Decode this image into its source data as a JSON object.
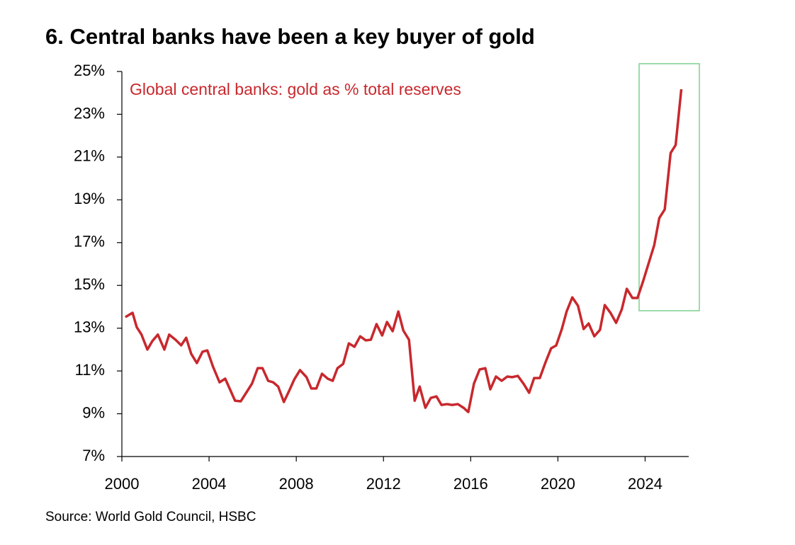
{
  "chart_data": {
    "type": "line",
    "title": "6. Central banks have been a key buyer of gold",
    "source": "Source: World Gold Council, HSBC",
    "x": [
      2000.16,
      2000.49,
      2000.68,
      2000.9,
      2001.17,
      2001.4,
      2001.65,
      2001.95,
      2002.17,
      2002.47,
      2002.72,
      2002.95,
      2003.18,
      2003.44,
      2003.7,
      2003.92,
      2004.18,
      2004.48,
      2004.74,
      2004.96,
      2005.19,
      2005.45,
      2005.74,
      2005.97,
      2006.23,
      2006.45,
      2006.71,
      2006.94,
      2007.17,
      2007.43,
      2007.69,
      2007.91,
      2008.17,
      2008.47,
      2008.69,
      2008.92,
      2009.18,
      2009.44,
      2009.67,
      2009.89,
      2010.15,
      2010.41,
      2010.67,
      2010.93,
      2011.19,
      2011.42,
      2011.68,
      2011.94,
      2012.16,
      2012.42,
      2012.68,
      2012.91,
      2013.17,
      2013.43,
      2013.66,
      2013.92,
      2014.17,
      2014.43,
      2014.66,
      2014.92,
      2015.15,
      2015.41,
      2015.67,
      2015.89,
      2016.15,
      2016.41,
      2016.67,
      2016.9,
      2017.16,
      2017.42,
      2017.68,
      2017.9,
      2018.16,
      2018.42,
      2018.68,
      2018.91,
      2019.17,
      2019.43,
      2019.69,
      2019.92,
      2020.18,
      2020.4,
      2020.66,
      2020.92,
      2021.18,
      2021.41,
      2021.67,
      2021.93,
      2022.15,
      2022.41,
      2022.67,
      2022.93,
      2023.16,
      2023.42,
      2023.65,
      2023.9,
      2024.16,
      2024.42,
      2024.65,
      2024.9,
      2025.17,
      2025.4,
      2025.66
    ],
    "series": [
      {
        "name": "Global central banks: gold as % total reserves",
        "color": "#c8282d",
        "values": [
          13.52,
          13.72,
          13.05,
          12.7,
          12.0,
          12.4,
          12.7,
          12.0,
          12.7,
          12.45,
          12.2,
          12.55,
          11.8,
          11.37,
          11.9,
          11.96,
          11.2,
          10.47,
          10.64,
          10.14,
          9.61,
          9.58,
          10.04,
          10.41,
          11.13,
          11.13,
          10.54,
          10.47,
          10.27,
          9.55,
          10.11,
          10.61,
          11.04,
          10.71,
          10.18,
          10.18,
          10.87,
          10.64,
          10.54,
          11.13,
          11.33,
          12.29,
          12.13,
          12.62,
          12.43,
          12.46,
          13.19,
          12.66,
          13.29,
          12.86,
          13.78,
          12.89,
          12.46,
          9.61,
          10.27,
          9.28,
          9.74,
          9.81,
          9.41,
          9.45,
          9.41,
          9.45,
          9.28,
          9.08,
          10.41,
          11.07,
          11.13,
          10.14,
          10.74,
          10.54,
          10.74,
          10.71,
          10.77,
          10.41,
          9.98,
          10.67,
          10.67,
          11.4,
          12.06,
          12.19,
          12.96,
          13.78,
          14.44,
          14.05,
          12.96,
          13.22,
          12.62,
          12.92,
          14.08,
          13.72,
          13.25,
          13.88,
          14.84,
          14.41,
          14.41,
          15.17,
          16.03,
          16.89,
          18.15,
          18.55,
          21.19,
          21.56,
          24.17
        ]
      }
    ],
    "xlim": [
      2000,
      2026
    ],
    "xticks": [
      2000,
      2004,
      2008,
      2012,
      2016,
      2020,
      2024
    ],
    "ylim": [
      7,
      25
    ],
    "yticks": [
      {
        "value": 7,
        "label": "7%"
      },
      {
        "value": 9,
        "label": "9%"
      },
      {
        "value": 11,
        "label": "11%"
      },
      {
        "value": 13,
        "label": "13%"
      },
      {
        "value": 15,
        "label": "15%"
      },
      {
        "value": 17,
        "label": "17%"
      },
      {
        "value": 19,
        "label": "19%"
      },
      {
        "value": 21,
        "label": "21%"
      },
      {
        "value": 23,
        "label": "23%"
      },
      {
        "value": 25,
        "label": "25%"
      }
    ]
  }
}
